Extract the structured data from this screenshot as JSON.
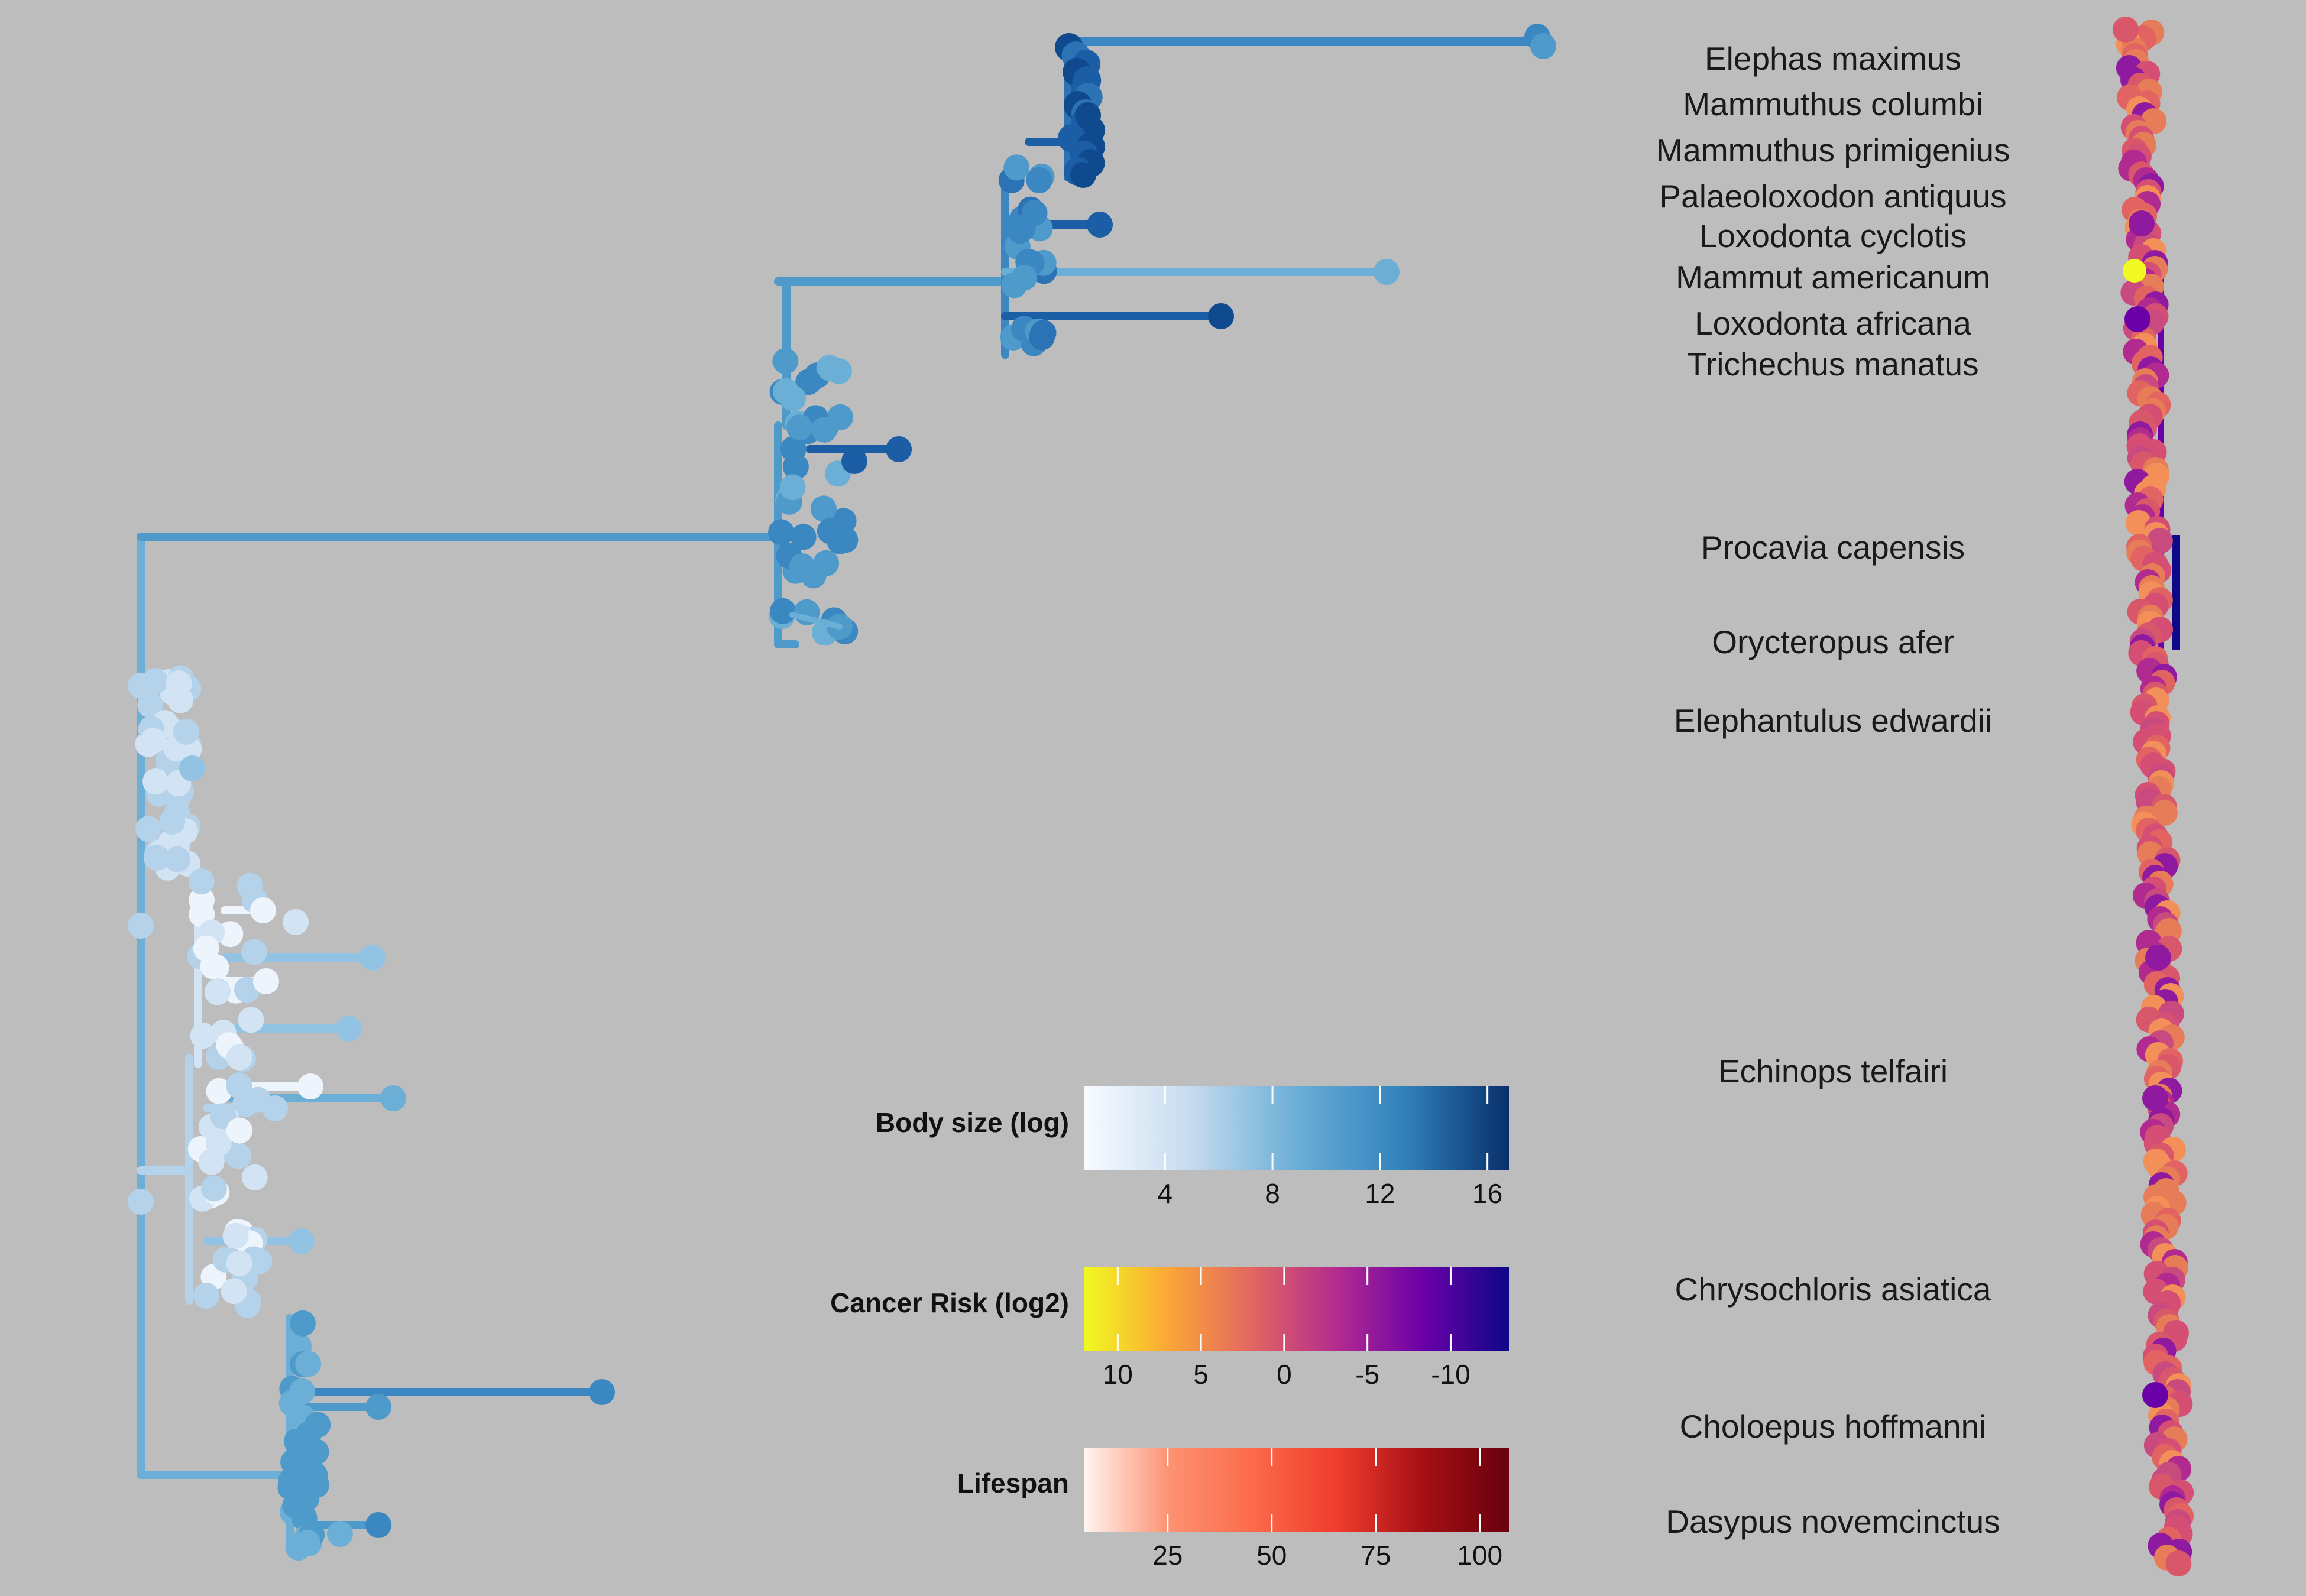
{
  "species_labels": [
    "Elephas maximus",
    "Mammuthus columbi",
    "Mammuthus primigenius",
    "Palaeoloxodon antiquus",
    "Loxodonta cyclotis",
    "Mammut americanum",
    "Loxodonta africana",
    "Trichechus manatus",
    "Procavia capensis",
    "Orycteropus afer",
    "Elephantulus edwardii",
    "Echinops telfairi",
    "Chrysochloris asiatica",
    "Choloepus hoffmanni",
    "Dasypus novemcinctus"
  ],
  "legends": {
    "body_size": {
      "title": "Body size (log)",
      "ticks": [
        "4",
        "8",
        "12",
        "16"
      ],
      "tick_values": [
        4,
        8,
        12,
        16
      ],
      "range": [
        1,
        16.8
      ],
      "colors": [
        "#f7fbff",
        "#c6dbef",
        "#6baed6",
        "#3182bd",
        "#08306b"
      ]
    },
    "cancer_risk": {
      "title": "Cancer Risk (log2)",
      "ticks": [
        "10",
        "5",
        "0",
        "-5",
        "-10"
      ],
      "tick_values": [
        10,
        5,
        0,
        -5,
        -10
      ],
      "range": [
        12,
        -13.5
      ],
      "colors": [
        "#f0f921",
        "#fca636",
        "#e16462",
        "#b12a90",
        "#6a00a8",
        "#0d0887"
      ]
    },
    "lifespan": {
      "title": "Lifespan",
      "ticks": [
        "25",
        "50",
        "75",
        "100"
      ],
      "tick_values": [
        25,
        50,
        75,
        100
      ],
      "range": [
        5,
        107
      ],
      "colors": [
        "#fff5f0",
        "#fc9272",
        "#fb6a4a",
        "#ef3b2c",
        "#a50f15",
        "#67000d"
      ]
    }
  },
  "colors": {
    "background": "#bdbdbd",
    "text": "#1a1a1a"
  }
}
